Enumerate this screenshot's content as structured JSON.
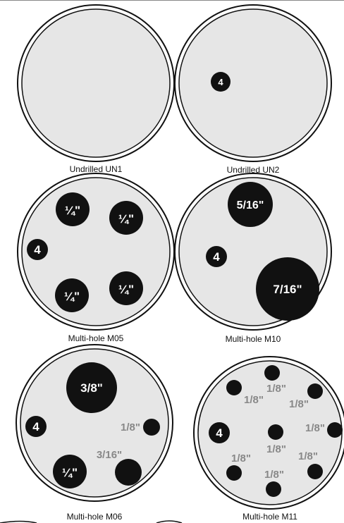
{
  "captions": {
    "un1": "Undrilled UN1",
    "un2": "Undrilled UN2",
    "m05": "Multi-hole M05",
    "m10": "Multi-hole M10",
    "m06": "Multi-hole M06",
    "m11": "Multi-hole M11"
  },
  "labels": {
    "four": "4",
    "quarter": "¼\"",
    "five_sixteenths": "5/16\"",
    "seven_sixteenths": "7/16\"",
    "three_eighths": "3/8\"",
    "three_sixteenths": "3/16\"",
    "one_eighth": "1/8\""
  },
  "colors": {
    "disc_fill": "#e6e6e6",
    "outline": "#111111",
    "hole": "#111111",
    "gray_label": "#888888"
  }
}
